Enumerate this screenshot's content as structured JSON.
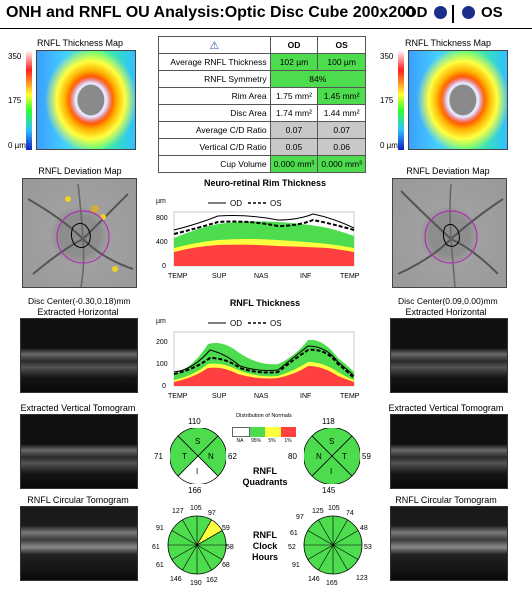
{
  "header": {
    "title": "ONH and RNFL OU Analysis:Optic Disc Cube 200x200",
    "od": "OD",
    "os": "OS"
  },
  "maps": {
    "thickness_caption": "RNFL Thickness Map",
    "deviation_caption": "RNFL Deviation Map",
    "scale_top": "350",
    "scale_mid": "175",
    "scale_bottom": "0 µm"
  },
  "disc_center": {
    "od": "Disc Center(-0.30,0.18)mm",
    "os": "Disc Center(0.09,0.00)mm"
  },
  "tomograms": {
    "horizontal": "Extracted Horizontal Tomogram",
    "vertical": "Extracted Vertical Tomogram",
    "circular": "RNFL Circular Tomogram"
  },
  "table": {
    "warn": "⚠",
    "col_od": "OD",
    "col_os": "OS",
    "rows": [
      {
        "label": "Average RNFL Thickness",
        "od": "102 µm",
        "os": "100 µm"
      },
      {
        "label": "RNFL Symmetry",
        "both": "84%"
      },
      {
        "label": "Rim Area",
        "od": "1.75 mm²",
        "os": "1.45 mm²"
      },
      {
        "label": "Disc Area",
        "od": "1.74 mm²",
        "os": "1.44 mm²"
      },
      {
        "label": "Average C/D Ratio",
        "od": "0.07",
        "os": "0.07"
      },
      {
        "label": "Vertical C/D Ratio",
        "od": "0.05",
        "os": "0.06"
      },
      {
        "label": "Cup Volume",
        "od": "0.000 mm³",
        "os": "0.000 mm³"
      }
    ]
  },
  "neuro_chart": {
    "title": "Neuro-retinal Rim Thickness",
    "unit": "µm",
    "legend_od": "OD",
    "legend_os": "OS",
    "yticks": [
      "800",
      "400",
      "0"
    ],
    "xticks": [
      "TEMP",
      "SUP",
      "NAS",
      "INF",
      "TEMP"
    ]
  },
  "rnfl_chart": {
    "title": "RNFL Thickness",
    "unit": "µm",
    "legend_od": "OD",
    "legend_os": "OS",
    "yticks": [
      "200",
      "100",
      "0"
    ],
    "xticks": [
      "TEMP",
      "SUP",
      "NAS",
      "INF",
      "TEMP"
    ]
  },
  "distribution": {
    "title": "Distribution of Normals",
    "labels": [
      "NA",
      "95%",
      "5%",
      "1%"
    ]
  },
  "quadrants": {
    "label1": "RNFL",
    "label2": "Quadrants",
    "od": {
      "s": "110",
      "n": "62",
      "i": "166",
      "t": "71"
    },
    "os": {
      "s": "118",
      "n": "59",
      "i": "145",
      "t": "80"
    },
    "letters": {
      "s": "S",
      "n": "N",
      "i": "I",
      "t": "T"
    }
  },
  "clock": {
    "label1": "RNFL",
    "label2": "Clock",
    "label3": "Hours",
    "od": [
      "127",
      "105",
      "97",
      "59",
      "58",
      "68",
      "162",
      "190",
      "146",
      "61",
      "61",
      "91"
    ],
    "os": [
      "125",
      "105",
      "74",
      "48",
      "53",
      "123",
      "165",
      "146",
      "91",
      "52",
      "61",
      "97"
    ]
  },
  "colors": {
    "normal_green": "#4ddc4d",
    "border_yellow": "#ffff40",
    "gray": "#c8c8c8",
    "od_dot": "#1a2e8a"
  }
}
